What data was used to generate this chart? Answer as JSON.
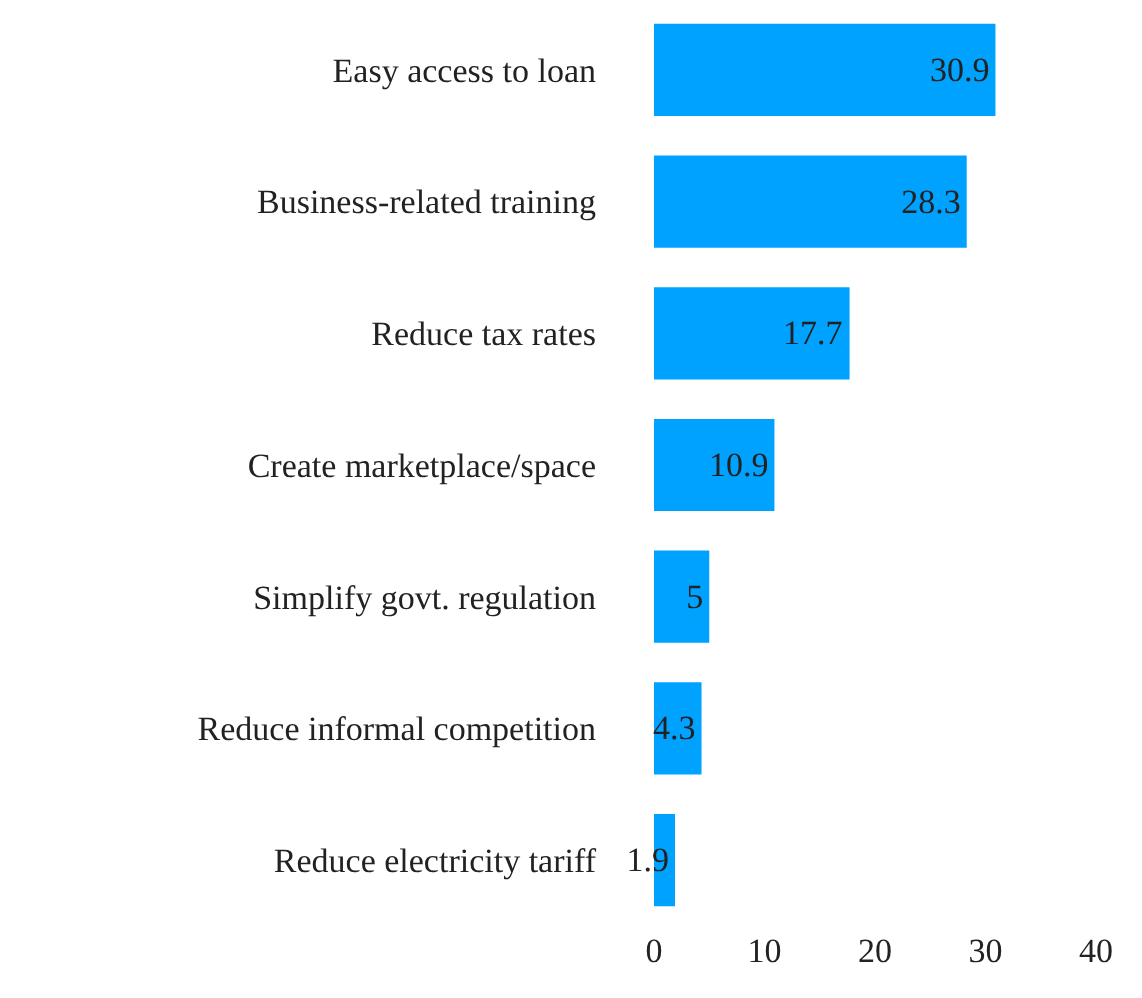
{
  "chart_data": {
    "type": "bar",
    "orientation": "horizontal",
    "categories": [
      "Easy access to loan",
      "Business-related training",
      "Reduce tax rates",
      "Create marketplace/space",
      "Simplify govt. regulation",
      "Reduce informal competition",
      "Reduce electricity tariff"
    ],
    "values": [
      30.9,
      28.3,
      17.7,
      10.9,
      5,
      4.3,
      1.9
    ],
    "color": "#00a2ff",
    "xlim": [
      0,
      40
    ],
    "xticks": [
      0,
      10,
      20,
      30,
      40
    ],
    "data_labels": true
  }
}
